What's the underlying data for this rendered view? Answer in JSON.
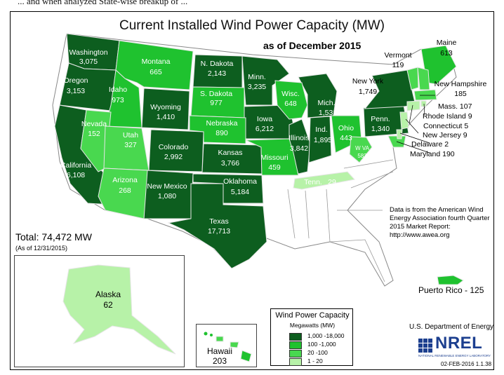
{
  "page": {
    "cut_caption": "... and when analyzed State-wise breakup of ...",
    "title": "Current Installed Wind Power Capacity (MW)",
    "subtitle": "as of December 2015",
    "total": "Total:  74,472 MW",
    "as_of": "(As of 12/31/2015)",
    "source": "Data is from the American Wind Energy Association fourth Quarter 2015 Market Report: http://www.awea.org",
    "agency": "U.S. Department of Energy",
    "logo_text": "NREL",
    "logo_subtext": "NATIONAL RENEWABLE ENERGY LABORATORY",
    "date_code": "02-FEB-2016 1.1.38"
  },
  "colors": {
    "tier_1000_18000": "#0d5e1f",
    "tier_100_1000": "#1fc22f",
    "tier_20_100": "#49d84f",
    "tier_1_20": "#b7f2a8",
    "no_capacity": "#ffffff"
  },
  "legend": {
    "title": "Wind Power Capacity",
    "subtitle": "Megawatts (MW)",
    "items": [
      {
        "range": "1,000 -18,000",
        "color": "#0d5e1f"
      },
      {
        "range": "100 -1,000",
        "color": "#1fc22f"
      },
      {
        "range": "20 -100",
        "color": "#49d84f"
      },
      {
        "range": "1 - 20",
        "color": "#b7f2a8"
      }
    ]
  },
  "states": {
    "washington": {
      "name": "Washington",
      "value": "3,075"
    },
    "oregon": {
      "name": "Oregon",
      "value": "3,153"
    },
    "california": {
      "name": "California",
      "value": "6,108"
    },
    "nevada": {
      "name": "Nevada",
      "value": "152"
    },
    "idaho": {
      "name": "Idaho",
      "value": "973"
    },
    "montana": {
      "name": "Montana",
      "value": "665"
    },
    "wyoming": {
      "name": "Wyoming",
      "value": "1,410"
    },
    "utah": {
      "name": "Utah",
      "value": "327"
    },
    "arizona": {
      "name": "Arizona",
      "value": "268"
    },
    "colorado": {
      "name": "Colorado",
      "value": "2,992"
    },
    "new_mexico": {
      "name": "New Mexico",
      "value": "1,080"
    },
    "n_dakota": {
      "name": "N. Dakota",
      "value": "2,143"
    },
    "s_dakota": {
      "name": "S. Dakota",
      "value": "977"
    },
    "nebraska": {
      "name": "Nebraska",
      "value": "890"
    },
    "kansas": {
      "name": "Kansas",
      "value": "3,766"
    },
    "oklahoma": {
      "name": "Oklahoma",
      "value": "5,184"
    },
    "texas": {
      "name": "Texas",
      "value": "17,713"
    },
    "minn": {
      "name": "Minn.",
      "value": "3,235"
    },
    "iowa": {
      "name": "Iowa",
      "value": "6,212"
    },
    "missouri": {
      "name": "Missouri",
      "value": "459"
    },
    "wisc": {
      "name": "Wisc.",
      "value": "648"
    },
    "illinois": {
      "name": "Illinois",
      "value": "3,842"
    },
    "mich": {
      "name": "Mich.",
      "value": "1,531"
    },
    "ind": {
      "name": "Ind.",
      "value": "1,895"
    },
    "ohio": {
      "name": "Ohio",
      "value": "443"
    },
    "w_va": {
      "name": "W VA",
      "value": "583"
    },
    "tenn": {
      "name": "Tenn.",
      "value": "29"
    },
    "penn": {
      "name": "Penn.",
      "value": "1,340"
    },
    "new_york": {
      "name": "New York",
      "value": "1,749"
    },
    "vermont": {
      "name": "Vermont",
      "value": "119"
    },
    "maine": {
      "name": "Maine",
      "value": "613"
    },
    "new_hampshire": {
      "name": "New Hampshire",
      "value": "185"
    },
    "mass": {
      "label": "Mass. 107"
    },
    "rhode_island": {
      "label": "Rhode Island 9"
    },
    "connecticut": {
      "label": "Connecticut 5"
    },
    "new_jersey": {
      "label": "New Jersey 9"
    },
    "delaware": {
      "label": "Delaware 2"
    },
    "maryland": {
      "label": "Maryland 190"
    },
    "alaska": {
      "name": "Alaska",
      "value": "62"
    },
    "hawaii": {
      "name": "Hawaii",
      "value": "203"
    },
    "puerto_rico": {
      "label": "Puerto Rico - 125"
    }
  }
}
